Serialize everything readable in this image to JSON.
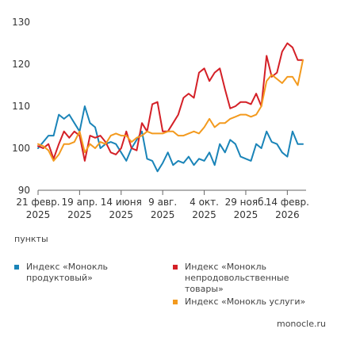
{
  "chart_data": {
    "type": "line",
    "title": "",
    "xlabel": "",
    "ylabel": "пункты",
    "ylim": [
      90,
      130
    ],
    "yticks": [
      90,
      100,
      110,
      120,
      130
    ],
    "grid": false,
    "legend": "bottom",
    "x_ticks": [
      {
        "line1": "21 февр.",
        "line2": "2025"
      },
      {
        "line1": "19 апр.",
        "line2": "2025"
      },
      {
        "line1": "14 июня",
        "line2": "2025"
      },
      {
        "line1": "9 авг.",
        "line2": "2025"
      },
      {
        "line1": "4 окт.",
        "line2": "2025"
      },
      {
        "line1": "29 нояб.",
        "line2": "2025"
      },
      {
        "line1": "14 февр.",
        "line2": "2026"
      }
    ],
    "x_tick_positions": [
      0,
      8,
      16,
      24,
      32,
      40,
      48
    ],
    "x_count": 52,
    "series": [
      {
        "name": "Индекс «Монокль продуктовый»",
        "color": "#1a84b8",
        "values": [
          100,
          101.5,
          103,
          103,
          108,
          107,
          108,
          106,
          104,
          110,
          106,
          105,
          100,
          101,
          101.5,
          101,
          99,
          97,
          100,
          102,
          104,
          97.5,
          97,
          94.5,
          96.5,
          99,
          96,
          97,
          96.5,
          98,
          96,
          97.5,
          97,
          99,
          96,
          101,
          99,
          102,
          101,
          98,
          97.5,
          97,
          101,
          100,
          104,
          101.5,
          101,
          99,
          98,
          104,
          101,
          101
        ]
      },
      {
        "name": "Индекс «Монокль непродовольственные товары»",
        "color": "#d42027",
        "values": [
          100.5,
          100,
          101,
          97.5,
          101,
          104,
          102.5,
          104,
          103,
          97,
          103,
          102.5,
          103,
          101.5,
          99,
          98.5,
          100,
          104,
          100,
          99.5,
          106,
          104,
          110.5,
          111,
          104,
          104,
          106,
          108,
          112,
          113,
          112,
          118,
          119,
          116,
          118,
          119,
          114,
          109.5,
          110,
          111,
          111,
          110.5,
          113,
          110,
          122,
          117,
          118,
          123,
          125,
          124,
          121,
          121
        ]
      },
      {
        "name": "Индекс «Монокль услуги»",
        "color": "#f39a1e",
        "values": [
          101,
          100.5,
          99.5,
          97,
          98.5,
          101,
          101,
          101.5,
          104,
          99,
          101,
          100,
          101.5,
          101,
          103,
          103.5,
          103,
          103,
          101.5,
          102.5,
          103,
          104,
          103.5,
          103.5,
          103.5,
          104,
          104,
          103,
          103,
          103.5,
          104,
          103.5,
          105,
          107,
          105,
          106,
          106,
          107,
          107.5,
          108,
          108,
          107.5,
          108,
          110,
          116,
          117.5,
          116.5,
          115.5,
          117,
          117,
          115,
          121
        ]
      }
    ]
  },
  "source_label": "monocle.ru"
}
